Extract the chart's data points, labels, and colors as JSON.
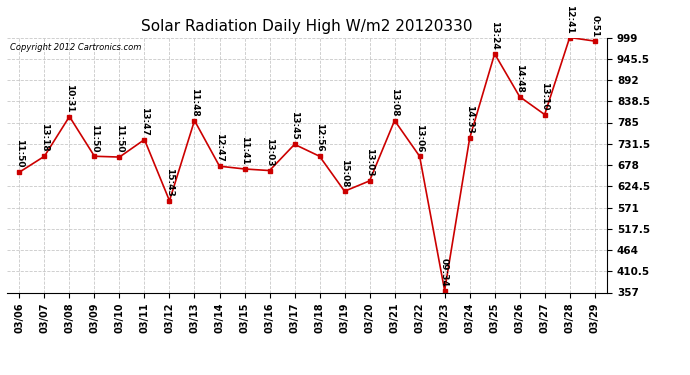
{
  "title": "Solar Radiation Daily High W/m2 20120330",
  "copyright": "Copyright 2012 Cartronics.com",
  "dates": [
    "03/06",
    "03/07",
    "03/08",
    "03/09",
    "03/10",
    "03/11",
    "03/12",
    "03/13",
    "03/14",
    "03/15",
    "03/16",
    "03/17",
    "03/18",
    "03/19",
    "03/20",
    "03/21",
    "03/22",
    "03/23",
    "03/24",
    "03/25",
    "03/26",
    "03/27",
    "03/28",
    "03/29"
  ],
  "values": [
    660,
    700,
    800,
    700,
    698,
    742,
    588,
    790,
    675,
    668,
    664,
    730,
    700,
    612,
    638,
    790,
    700,
    362,
    745,
    958,
    850,
    805,
    999,
    990
  ],
  "labels": [
    "11:50",
    "13:18",
    "10:31",
    "11:50",
    "11:50",
    "13:47",
    "15:43",
    "11:48",
    "12:47",
    "11:41",
    "13:03",
    "13:45",
    "12:56",
    "15:08",
    "13:03",
    "13:08",
    "13:06",
    "09:34",
    "14:33",
    "13:24",
    "14:48",
    "13:10",
    "12:41",
    "0:51"
  ],
  "ylim": [
    357.0,
    999.0
  ],
  "yticks": [
    357.0,
    410.5,
    464.0,
    517.5,
    571.0,
    624.5,
    678.0,
    731.5,
    785.0,
    838.5,
    892.0,
    945.5,
    999.0
  ],
  "line_color": "#cc0000",
  "marker_color": "#cc0000",
  "bg_color": "#ffffff",
  "grid_color": "#bbbbbb",
  "title_fontsize": 11,
  "label_fontsize": 6.5,
  "xtick_fontsize": 7,
  "ytick_fontsize": 7.5
}
